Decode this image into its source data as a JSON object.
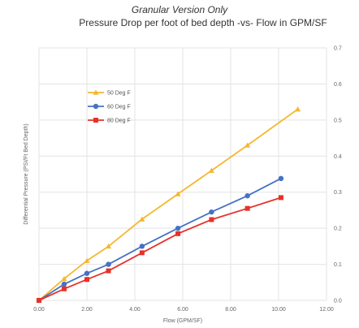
{
  "chart_data": {
    "type": "line",
    "subtitle": "Granular Version Only",
    "title": "Pressure Drop per foot of bed depth -vs- Flow in GPM/SF",
    "xlabel": "Flow (GPM/SF)",
    "ylabel": "Differential Pressure (PSI/Ft Bed Depth)",
    "xlim": [
      0,
      12
    ],
    "ylim": [
      0,
      0.7
    ],
    "x_ticks": [
      "0.00",
      "2.00",
      "4.00",
      "6.00",
      "8.00",
      "10.00",
      "12.00"
    ],
    "y_ticks": [
      "0.0",
      "0.1",
      "0.2",
      "0.3",
      "0.4",
      "0.5",
      "0.6",
      "0.7"
    ],
    "grid": true,
    "legend_position": "upper-left",
    "series": [
      {
        "name": "50 Deg F",
        "color": "#f5b731",
        "marker": "triangle",
        "x": [
          0,
          1.05,
          2.0,
          2.9,
          4.3,
          5.8,
          7.2,
          8.7,
          10.8
        ],
        "y": [
          0,
          0.06,
          0.11,
          0.15,
          0.225,
          0.295,
          0.36,
          0.43,
          0.53
        ]
      },
      {
        "name": "60 Deg F",
        "color": "#4472c4",
        "marker": "circle",
        "x": [
          0,
          1.05,
          2.0,
          2.9,
          4.3,
          5.8,
          7.2,
          8.7,
          10.1
        ],
        "y": [
          0,
          0.045,
          0.075,
          0.1,
          0.15,
          0.2,
          0.245,
          0.29,
          0.338
        ]
      },
      {
        "name": "80 Deg F",
        "color": "#e8312a",
        "marker": "square",
        "x": [
          0,
          1.05,
          2.0,
          2.9,
          4.3,
          5.8,
          7.2,
          8.7,
          10.1
        ],
        "y": [
          0,
          0.032,
          0.058,
          0.082,
          0.132,
          0.185,
          0.224,
          0.255,
          0.285
        ]
      }
    ]
  }
}
